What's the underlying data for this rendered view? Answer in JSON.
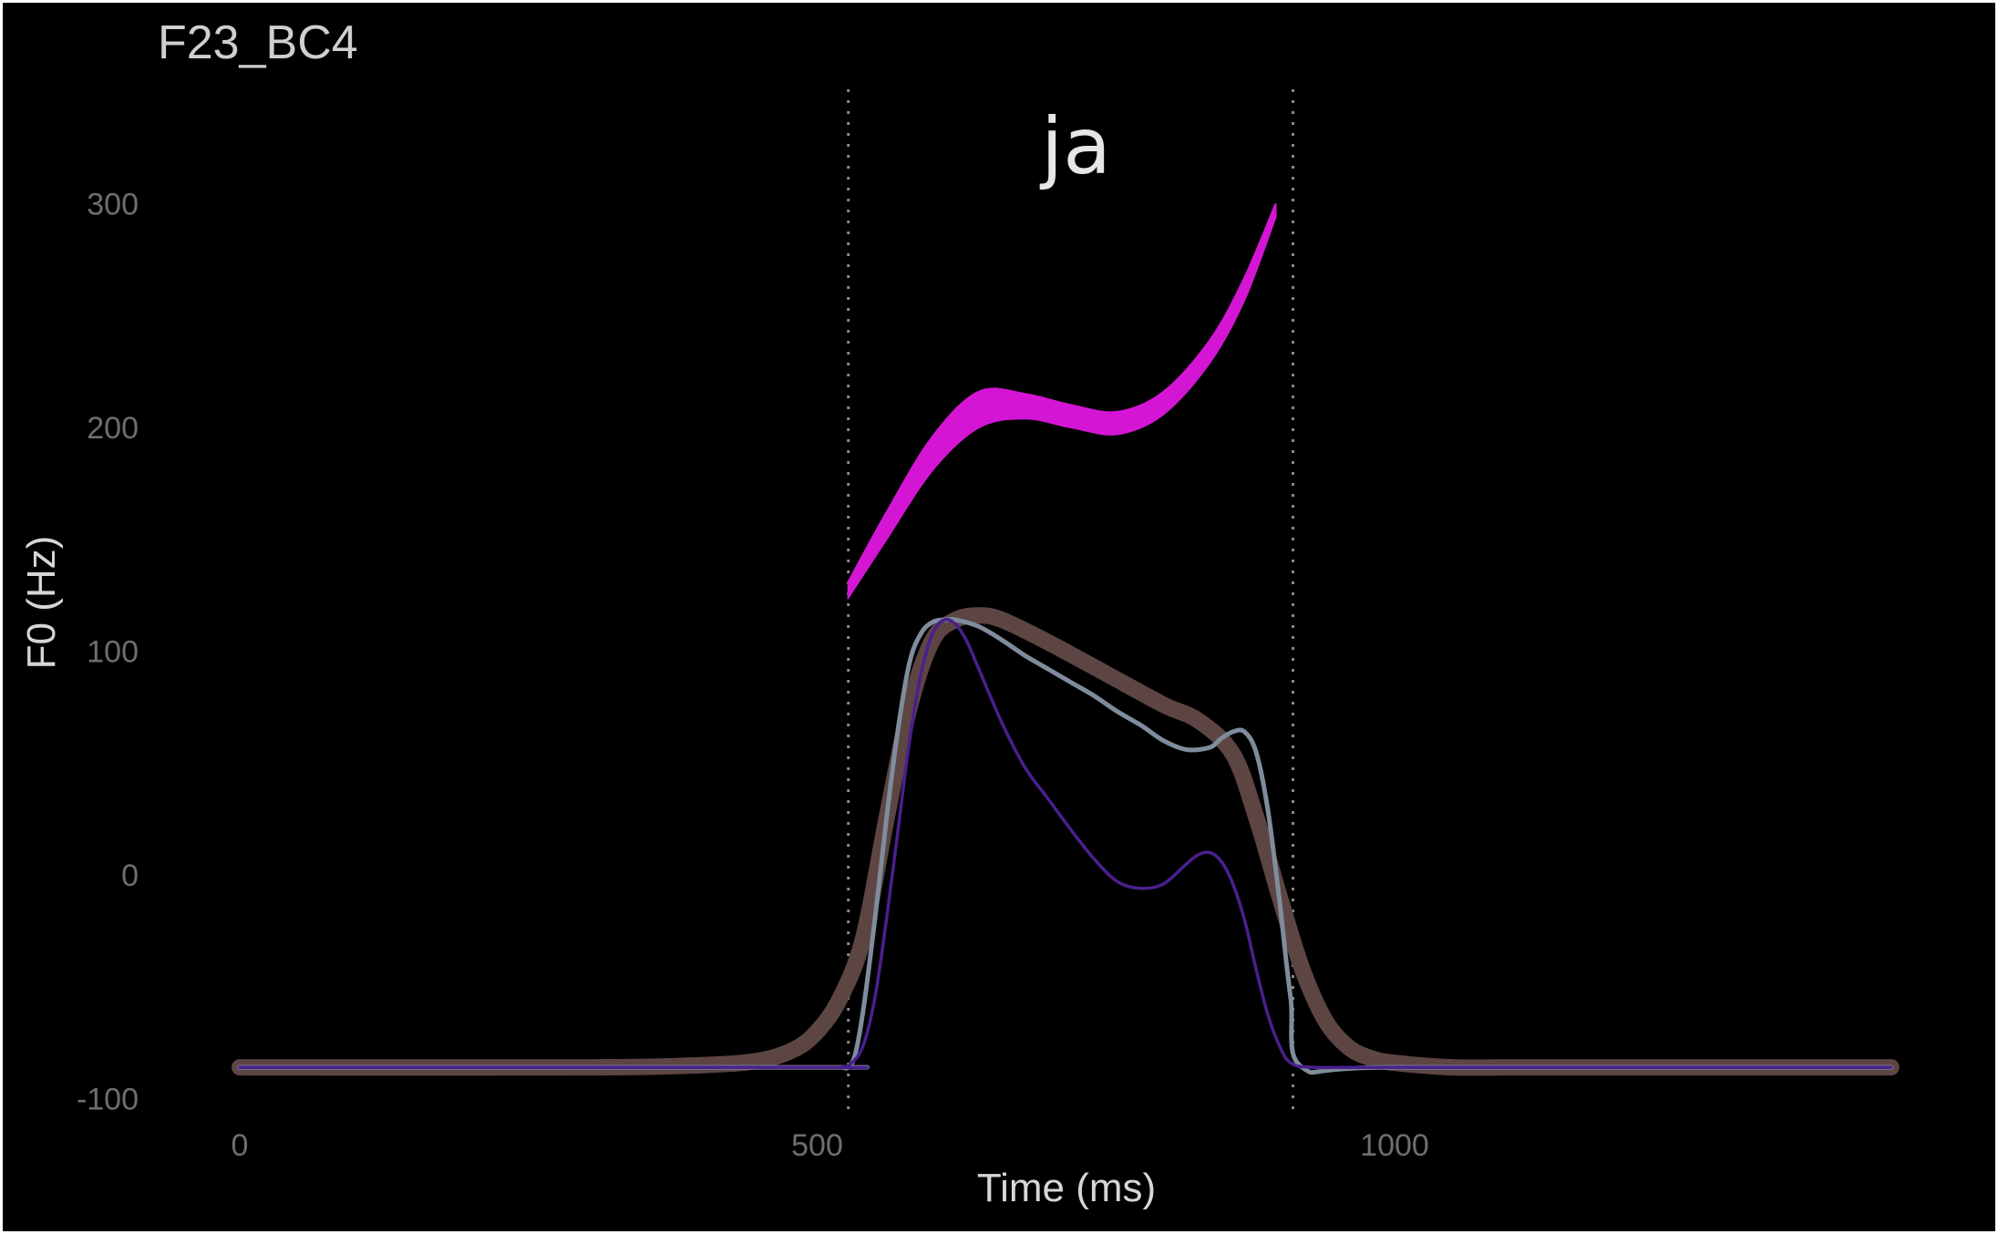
{
  "chart_data": {
    "type": "line",
    "title": "F23_BC4",
    "xlabel": "Time (ms)",
    "ylabel": "F0 (Hz)",
    "xlim": [
      0,
      1430
    ],
    "ylim": [
      -100,
      300
    ],
    "x_ticks": [
      "0",
      "500",
      "1000"
    ],
    "y_ticks": [
      "300",
      "200",
      "100",
      "0",
      "-100"
    ],
    "grid": false,
    "segments": [
      {
        "label": "ja",
        "start": 527,
        "end": 912
      }
    ],
    "colors": {
      "band": "#d416d4",
      "brown": "#5c4543",
      "steel": "#7f8c9c",
      "purple": "#4a1f8e",
      "boundary": "#8a8a8a"
    },
    "series": [
      {
        "style": "band",
        "x": [
          527,
          560,
          600,
          640,
          680,
          720,
          760,
          800,
          840,
          870,
          897
        ],
        "lower": [
          124,
          150,
          181,
          200,
          204,
          200,
          197,
          206,
          229,
          257,
          294
        ],
        "upper": [
          131,
          162,
          196,
          216,
          215,
          210,
          207,
          216,
          239,
          267,
          300
        ]
      },
      {
        "style": "thick-brown",
        "x": [
          0,
          300,
          400,
          450,
          480,
          500,
          520,
          540,
          560,
          580,
          600,
          620,
          640,
          660,
          700,
          750,
          800,
          830,
          860,
          880,
          900,
          920,
          940,
          960,
          980,
          1000,
          1050,
          1100,
          1200,
          1430
        ],
        "y": [
          -86,
          -86,
          -85,
          -83,
          -78,
          -70,
          -55,
          -28,
          25,
          75,
          105,
          114,
          116,
          114,
          104,
          90,
          76,
          69,
          54,
          26,
          -9,
          -42,
          -65,
          -77,
          -82,
          -84,
          -86,
          -86,
          -86,
          -86
        ]
      },
      {
        "style": "steel",
        "x": [
          0,
          500,
          520,
          527,
          533,
          540,
          550,
          560,
          570,
          580,
          590,
          600,
          610,
          620,
          640,
          660,
          680,
          700,
          720,
          740,
          760,
          780,
          800,
          820,
          840,
          850,
          860,
          870,
          880,
          890,
          900,
          910,
          920,
          1000,
          1430
        ],
        "y": [
          -86,
          -86,
          -86,
          -86,
          -80,
          -60,
          -20,
          25,
          65,
          95,
          108,
          113,
          114,
          114,
          111,
          105,
          98,
          92,
          86,
          80,
          73,
          67,
          60,
          56,
          57,
          61,
          64,
          64,
          55,
          30,
          -10,
          -55,
          -86,
          -86,
          -86
        ]
      },
      {
        "style": "purple",
        "x": [
          0,
          500,
          520,
          530,
          540,
          550,
          560,
          570,
          580,
          590,
          600,
          610,
          620,
          630,
          640,
          660,
          680,
          700,
          720,
          740,
          760,
          780,
          800,
          820,
          830,
          840,
          850,
          860,
          870,
          880,
          890,
          900,
          910,
          930,
          1000,
          1430
        ],
        "y": [
          -86,
          -86,
          -86,
          -84,
          -76,
          -55,
          -20,
          20,
          60,
          90,
          108,
          114,
          112,
          104,
          92,
          68,
          48,
          34,
          20,
          7,
          -3,
          -6,
          -4,
          5,
          9,
          10,
          6,
          -4,
          -20,
          -42,
          -62,
          -76,
          -84,
          -86,
          -86,
          -86
        ]
      }
    ]
  }
}
